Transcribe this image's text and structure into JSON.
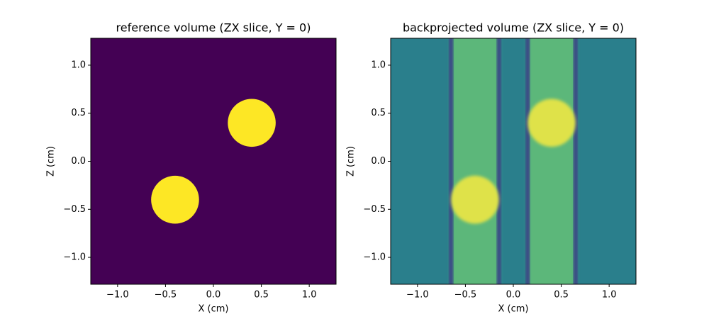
{
  "chart_data": [
    {
      "type": "image",
      "title": "reference volume (ZX slice, Y = 0)",
      "xlabel": "X (cm)",
      "ylabel": "Z (cm)",
      "xlim": [
        -1.28,
        1.28
      ],
      "ylim": [
        -1.28,
        1.28
      ],
      "xticks": [
        {
          "value": -1.0,
          "label": "−1.0"
        },
        {
          "value": -0.5,
          "label": "−0.5"
        },
        {
          "value": 0.0,
          "label": "0.0"
        },
        {
          "value": 0.5,
          "label": "0.5"
        },
        {
          "value": 1.0,
          "label": "1.0"
        }
      ],
      "yticks": [
        {
          "value": -1.0,
          "label": "−1.0"
        },
        {
          "value": -0.5,
          "label": "−0.5"
        },
        {
          "value": 0.0,
          "label": "0.0"
        },
        {
          "value": 0.5,
          "label": "0.5"
        },
        {
          "value": 1.0,
          "label": "1.0"
        }
      ],
      "background": "#440154",
      "shapes": [
        {
          "x": 0.4,
          "y": 0.4,
          "r": 0.25,
          "color": "#fde725"
        },
        {
          "x": -0.4,
          "y": -0.4,
          "r": 0.25,
          "color": "#fde725"
        }
      ]
    },
    {
      "type": "image",
      "title": "backprojected volume (ZX slice, Y = 0)",
      "xlabel": "X (cm)",
      "ylabel": "Z (cm)",
      "xlim": [
        -1.28,
        1.28
      ],
      "ylim": [
        -1.28,
        1.28
      ],
      "xticks": [
        {
          "value": -1.0,
          "label": "−1.0"
        },
        {
          "value": -0.5,
          "label": "−0.5"
        },
        {
          "value": 0.0,
          "label": "0.0"
        },
        {
          "value": 0.5,
          "label": "0.5"
        },
        {
          "value": 1.0,
          "label": "1.0"
        }
      ],
      "yticks": [
        {
          "value": -1.0,
          "label": "−1.0"
        },
        {
          "value": -0.5,
          "label": "−0.5"
        },
        {
          "value": 0.0,
          "label": "0.0"
        },
        {
          "value": 0.5,
          "label": "0.5"
        },
        {
          "value": 1.0,
          "label": "1.0"
        }
      ],
      "background": "#2a7f8c",
      "bands": [
        {
          "x0": -0.65,
          "x1": -0.15,
          "color": "#5bb77a",
          "edge": "#3a3f86"
        },
        {
          "x0": 0.15,
          "x1": 0.65,
          "color": "#5bb77a",
          "edge": "#3a3f86"
        }
      ],
      "shapes": [
        {
          "x": 0.4,
          "y": 0.4,
          "r": 0.25,
          "color": "#dfe24a"
        },
        {
          "x": -0.4,
          "y": -0.4,
          "r": 0.25,
          "color": "#dfe24a"
        }
      ]
    }
  ]
}
